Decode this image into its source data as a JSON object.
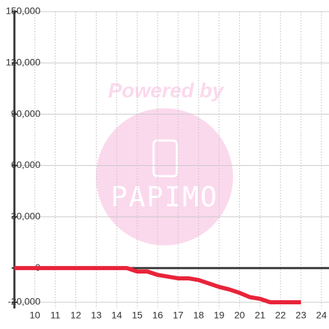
{
  "chart_data": {
    "type": "line",
    "x": [
      9,
      14.5,
      15,
      15.5,
      16,
      16.5,
      17,
      17.5,
      18,
      18.5,
      19,
      19.5,
      20,
      20.5,
      21,
      21.5,
      22,
      22.5,
      23
    ],
    "series": [
      {
        "color": "#e8243a",
        "values": [
          0,
          0,
          -2000,
          -2000,
          -4000,
          -5000,
          -6000,
          -6000,
          -7000,
          -9000,
          -11000,
          -12500,
          -14500,
          -17000,
          -18000,
          -20000,
          -20000,
          -20000,
          -20000
        ]
      }
    ],
    "xlim": [
      9,
      24.37
    ],
    "xticks": [
      10,
      11,
      12,
      13,
      14,
      15,
      16,
      17,
      18,
      19,
      20,
      21,
      22,
      23,
      24
    ],
    "ylim": [
      -20000,
      150000
    ],
    "yticks": [
      {
        "value": -20000,
        "label": "-20,000"
      },
      0,
      {
        "value": 30000,
        "label": "30,000"
      },
      {
        "value": 60000,
        "label": "60,000"
      },
      {
        "value": 90000,
        "label": "90,000"
      },
      {
        "value": 120000,
        "label": "120,000"
      },
      {
        "value": 150000,
        "label": "150,000"
      }
    ],
    "grid": true,
    "annotations": [
      "Powered by",
      "PAPIMO"
    ]
  }
}
